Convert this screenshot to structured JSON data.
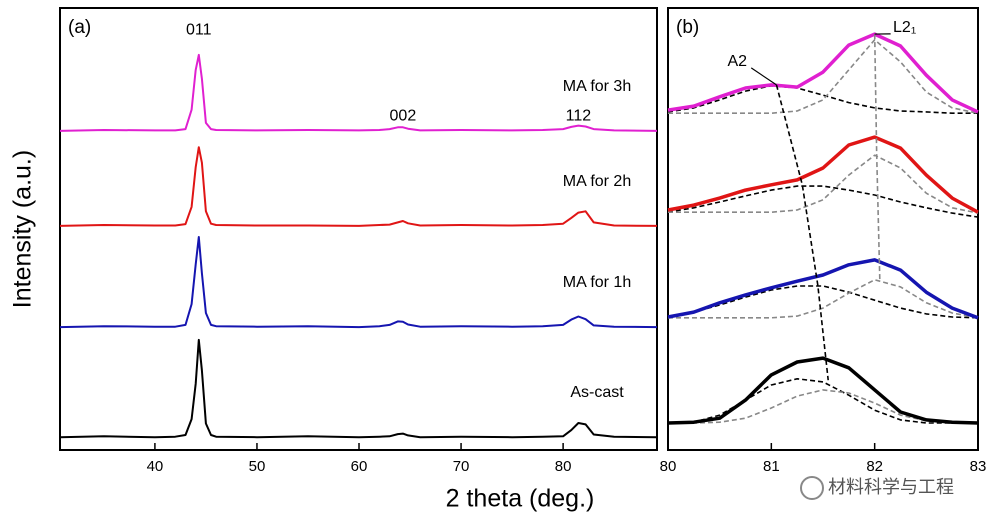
{
  "axis_labels": {
    "x": "2 theta (deg.)",
    "y": "Intensity (a.u.)"
  },
  "watermark": "材料科学与工程",
  "chart_data": [
    {
      "type": "line",
      "panel_label": "(a)",
      "xlim": [
        30.7,
        89.2
      ],
      "ylim": [
        0,
        100
      ],
      "xticks": [
        40,
        50,
        60,
        70,
        80
      ],
      "x": [
        30.7,
        35,
        40,
        42,
        43,
        43.6,
        44,
        44.3,
        44.6,
        45,
        45.5,
        46,
        50,
        55,
        60,
        62,
        63,
        63.8,
        64.3,
        64.8,
        66,
        70,
        75,
        78,
        80,
        80.8,
        81.5,
        82.2,
        83,
        85,
        89.2
      ],
      "series": [
        {
          "name": "As-cast",
          "color": "#000000",
          "values": [
            2.9,
            3.1,
            2.9,
            3.0,
            3.4,
            7,
            15,
            24.9,
            18,
            6,
            3.4,
            3.0,
            2.9,
            3.1,
            2.9,
            3.0,
            3.1,
            3.6,
            3.7,
            3.3,
            2.9,
            3.0,
            2.9,
            3.0,
            3.1,
            4.5,
            6.1,
            5.8,
            3.5,
            3.0,
            2.9
          ]
        },
        {
          "name": "MA for 1h",
          "color": "#1515b0",
          "values": [
            27.8,
            28.0,
            27.9,
            27.9,
            28.3,
            33,
            42,
            48.2,
            40,
            31,
            28.3,
            28.0,
            27.9,
            28.0,
            27.8,
            28.0,
            28.3,
            29.1,
            29.0,
            28.4,
            27.9,
            28.0,
            27.9,
            28.0,
            28.3,
            29.5,
            30.2,
            29.6,
            28.2,
            27.9,
            27.8
          ]
        },
        {
          "name": "MA for 2h",
          "color": "#e01515",
          "values": [
            50.7,
            50.9,
            50.8,
            50.8,
            51.1,
            55,
            64,
            68.5,
            65,
            54,
            51.2,
            50.9,
            50.8,
            50.8,
            50.7,
            50.9,
            51.0,
            51.5,
            51.8,
            51.3,
            50.8,
            50.9,
            50.8,
            50.9,
            51.2,
            52.5,
            53.7,
            54.0,
            51.5,
            50.8,
            50.7
          ]
        },
        {
          "name": "MA for 3h",
          "color": "#e020d0",
          "values": [
            72.2,
            72.4,
            72.3,
            72.3,
            72.6,
            77,
            86,
            89.4,
            84,
            74,
            72.6,
            72.4,
            72.3,
            72.4,
            72.3,
            72.4,
            72.6,
            73.0,
            73.0,
            72.7,
            72.3,
            72.4,
            72.3,
            72.4,
            72.6,
            73.1,
            73.4,
            73.2,
            72.6,
            72.3,
            72.2
          ]
        }
      ],
      "annotations": [
        {
          "text": "011",
          "x": 44.3,
          "y": 95
        },
        {
          "text": "002",
          "x": 64.3,
          "y": 75.5
        },
        {
          "text": "112",
          "x": 81.5,
          "y": 75.5
        }
      ]
    },
    {
      "type": "line",
      "panel_label": "(b)",
      "xlim": [
        80,
        83
      ],
      "ylim": [
        0,
        100
      ],
      "xticks": [
        80,
        81,
        82,
        83
      ],
      "x": [
        80,
        80.25,
        80.5,
        80.75,
        81,
        81.25,
        81.5,
        81.75,
        82,
        82.25,
        82.5,
        82.75,
        83
      ],
      "series": [
        {
          "color": "#000000",
          "dash": true,
          "values": [
            6.1,
            6.3,
            7.9,
            11.3,
            14.7,
            16.1,
            15.4,
            12.4,
            9.0,
            6.8,
            6.1,
            6.1,
            6.1
          ]
        },
        {
          "color": "#888888",
          "dash": true,
          "values": [
            6.1,
            6.1,
            6.3,
            7.2,
            9.5,
            12.2,
            13.6,
            12.9,
            10.6,
            7.9,
            6.6,
            6.1,
            6.1
          ]
        },
        {
          "color": "#000000",
          "values": [
            6.1,
            6.3,
            7.2,
            11.3,
            17.0,
            19.9,
            20.8,
            18.6,
            13.6,
            8.6,
            6.8,
            6.3,
            6.1
          ]
        },
        {
          "color": "#000000",
          "dash": true,
          "values": [
            30.1,
            31.2,
            32.8,
            34.6,
            36.2,
            37.1,
            37.1,
            35.7,
            33.9,
            32.1,
            30.8,
            30.1,
            29.9
          ]
        },
        {
          "color": "#888888",
          "dash": true,
          "values": [
            29.9,
            29.9,
            29.9,
            29.9,
            29.9,
            30.3,
            32.1,
            35.5,
            38.5,
            36.9,
            33.3,
            31.0,
            29.9
          ]
        },
        {
          "color": "#1515b0",
          "values": [
            30.1,
            31.2,
            33.3,
            35.1,
            36.7,
            38.2,
            39.6,
            41.9,
            43.0,
            40.7,
            35.7,
            32.1,
            29.9
          ]
        },
        {
          "color": "#000000",
          "dash": true,
          "values": [
            53.8,
            54.8,
            56.1,
            57.5,
            58.8,
            59.7,
            59.7,
            58.8,
            57.7,
            56.1,
            54.8,
            53.6,
            52.7
          ]
        },
        {
          "color": "#888888",
          "dash": true,
          "values": [
            53.8,
            53.8,
            53.8,
            53.8,
            53.8,
            54.3,
            56.6,
            62.2,
            66.7,
            63.8,
            58.1,
            54.8,
            53.6
          ]
        },
        {
          "color": "#e01515",
          "values": [
            54.3,
            55.4,
            57.0,
            58.8,
            60.0,
            61.1,
            63.8,
            69.0,
            70.8,
            68.3,
            62.2,
            57.0,
            53.8
          ]
        },
        {
          "color": "#000000",
          "dash": true,
          "values": [
            76.5,
            77.4,
            79.2,
            81.2,
            82.4,
            81.9,
            80.3,
            78.6,
            77.4,
            76.7,
            76.5,
            76.2,
            76.2
          ]
        },
        {
          "color": "#888888",
          "dash": true,
          "values": [
            76.2,
            76.2,
            76.2,
            76.2,
            76.2,
            76.7,
            79.2,
            86.0,
            92.8,
            87.8,
            81.0,
            77.4,
            76.2
          ]
        },
        {
          "color": "#e020d0",
          "values": [
            76.9,
            77.8,
            79.9,
            81.9,
            82.6,
            82.1,
            85.5,
            91.6,
            94.1,
            91.4,
            84.8,
            79.2,
            76.5
          ]
        }
      ],
      "annotations": [
        {
          "text": "A2",
          "x": 80.67,
          "y": 87.8,
          "color": "#000000",
          "line_x": [
            81.05,
            81.3,
            81.45,
            81.55
          ],
          "line_y": [
            82.6,
            60.0,
            37.3,
            15.8
          ]
        },
        {
          "text": "L2₁",
          "x": 82.29,
          "y": 95.5,
          "color": "#888888",
          "line_x": [
            82.0,
            82.02,
            82.05
          ],
          "line_y": [
            94.1,
            66.7,
            38.5
          ]
        }
      ]
    }
  ]
}
